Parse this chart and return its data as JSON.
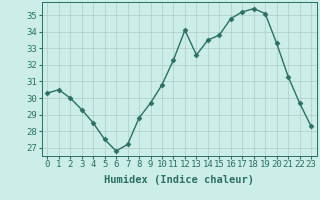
{
  "x": [
    0,
    1,
    2,
    3,
    4,
    5,
    6,
    7,
    8,
    9,
    10,
    11,
    12,
    13,
    14,
    15,
    16,
    17,
    18,
    19,
    20,
    21,
    22,
    23
  ],
  "y": [
    30.3,
    30.5,
    30.0,
    29.3,
    28.5,
    27.5,
    26.8,
    27.2,
    28.8,
    29.7,
    30.8,
    32.3,
    34.1,
    32.6,
    33.5,
    33.8,
    34.8,
    35.2,
    35.4,
    35.1,
    33.3,
    31.3,
    29.7,
    28.3
  ],
  "xlabel": "Humidex (Indice chaleur)",
  "xlim": [
    -0.5,
    23.5
  ],
  "ylim": [
    26.5,
    35.8
  ],
  "yticks": [
    27,
    28,
    29,
    30,
    31,
    32,
    33,
    34,
    35
  ],
  "xticks": [
    0,
    1,
    2,
    3,
    4,
    5,
    6,
    7,
    8,
    9,
    10,
    11,
    12,
    13,
    14,
    15,
    16,
    17,
    18,
    19,
    20,
    21,
    22,
    23
  ],
  "line_color": "#2e6e63",
  "marker": "D",
  "marker_size": 2.5,
  "bg_color": "#cceee8",
  "grid_color": "#b0ccc8",
  "text_color": "#2e6e63",
  "xlabel_fontsize": 7.5,
  "tick_fontsize": 6.5,
  "line_width": 1.0
}
